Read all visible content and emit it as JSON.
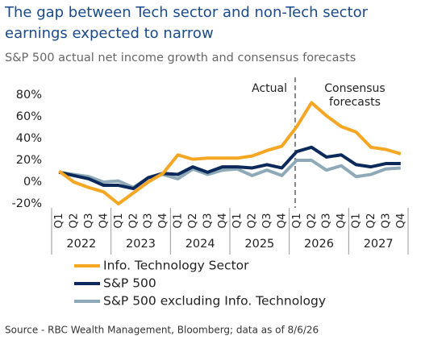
{
  "chart_data": {
    "type": "line",
    "title": [
      "The gap between Tech sector and non-Tech sector",
      "earnings expected to narrow"
    ],
    "subtitle": "S&P 500 actual net income growth and consensus forecasts",
    "categories": [
      "Q1",
      "Q2",
      "Q3",
      "Q4",
      "Q1",
      "Q2",
      "Q3",
      "Q4",
      "Q1",
      "Q2",
      "Q3",
      "Q4",
      "Q1",
      "Q2",
      "Q3",
      "Q4",
      "Q1",
      "Q2",
      "Q3",
      "Q4",
      "Q1",
      "Q2",
      "Q3",
      "Q4"
    ],
    "year_groups": [
      "2022",
      "2023",
      "2024",
      "2025",
      "2026",
      "2027"
    ],
    "series": [
      {
        "name": "Info. Technology Sector",
        "color": "#f5a623",
        "values": [
          10,
          0,
          -5,
          -9,
          -20,
          -10,
          0,
          8,
          25,
          21,
          22,
          22,
          22,
          24,
          29,
          33,
          51,
          73,
          61,
          51,
          46,
          32,
          30,
          26
        ]
      },
      {
        "name": "S&P 500",
        "color": "#0b2a5b",
        "values": [
          9,
          6,
          3,
          -3,
          -3,
          -6,
          4,
          8,
          7,
          14,
          9,
          14,
          14,
          13,
          16,
          13,
          28,
          32,
          23,
          25,
          16,
          14,
          17,
          17
        ]
      },
      {
        "name": "S&P 500 excluding Info. Technology",
        "color": "#8eaab8",
        "values": [
          9,
          7,
          5,
          0,
          1,
          -5,
          4,
          7,
          3,
          12,
          7,
          11,
          12,
          6,
          11,
          6,
          20,
          20,
          11,
          15,
          5,
          7,
          12,
          13
        ]
      }
    ],
    "ylim": [
      -20,
      80
    ],
    "yticks": [
      {
        "value": -20,
        "label": "-20%"
      },
      {
        "value": 0,
        "label": "0%"
      },
      {
        "value": 20,
        "label": "20%"
      },
      {
        "value": 40,
        "label": "40%"
      },
      {
        "value": 60,
        "label": "60%"
      },
      {
        "value": 80,
        "label": "80%"
      }
    ],
    "annotations": {
      "actual": "Actual",
      "forecast": [
        "Consensus",
        "forecasts"
      ]
    },
    "source": "Source - RBC Wealth Management, Bloomberg; data as of 8/6/26"
  }
}
